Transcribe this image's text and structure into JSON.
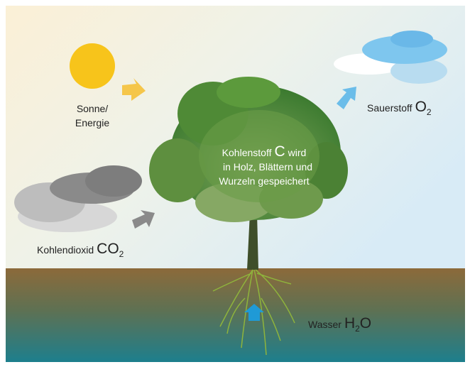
{
  "labels": {
    "sun": [
      "Sonne/",
      "Energie"
    ],
    "carbon_dioxide": {
      "name": "Kohlendioxid",
      "symbol": "CO",
      "subscript": "2"
    },
    "oxygen": {
      "name": "Sauerstoff",
      "symbol": "O",
      "subscript": "2"
    },
    "tree": {
      "line1_start": "Kohlenstoff",
      "symbol": "C",
      "line1_end": "wird",
      "lines": [
        "in Holz, Blättern und",
        "Wurzeln gespeichert"
      ]
    },
    "water": {
      "name": "Wasser",
      "symbol": "H",
      "subscript": "2",
      "symbol_end": "O"
    }
  }
}
